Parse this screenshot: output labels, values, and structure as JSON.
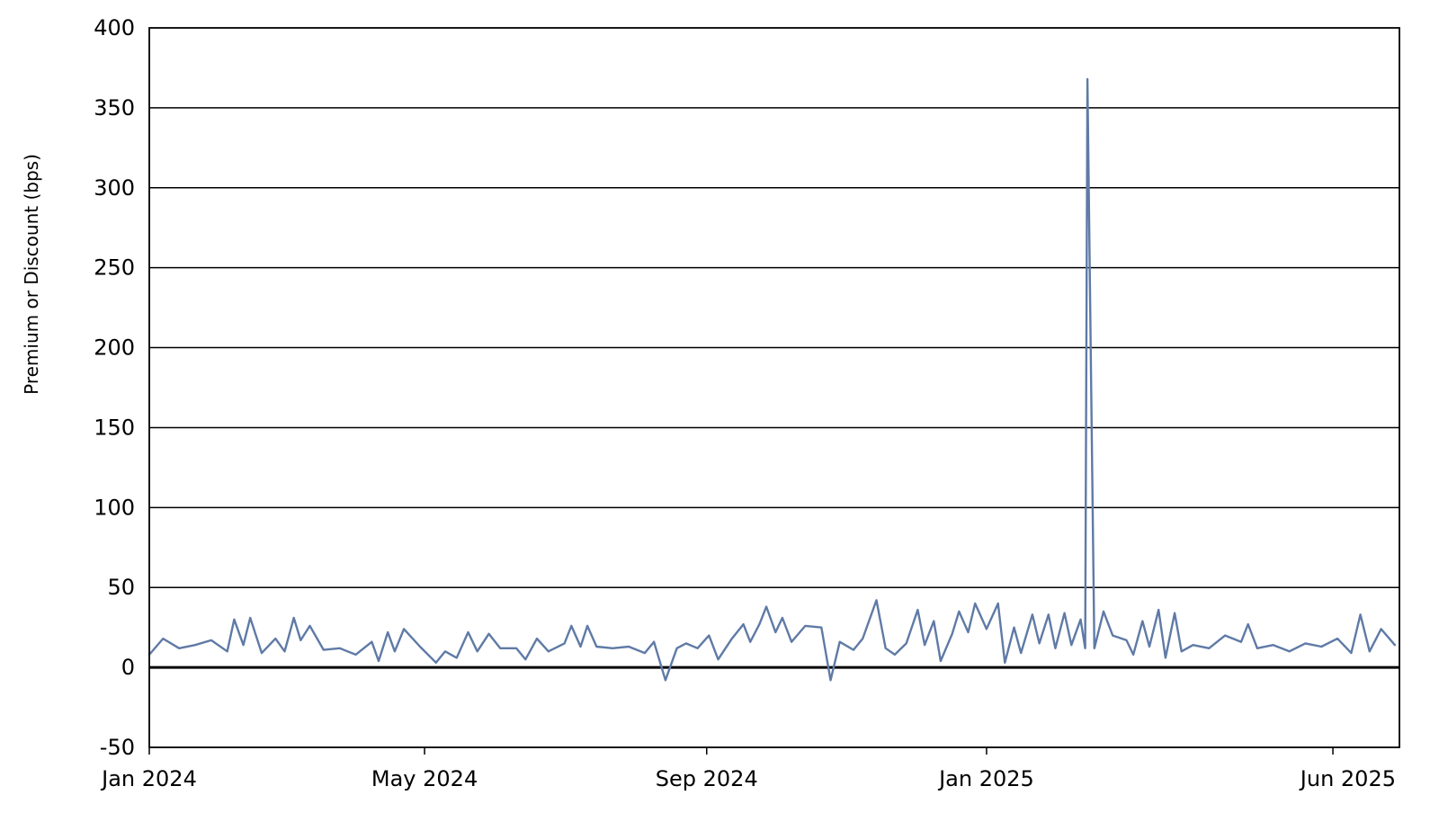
{
  "chart_data": {
    "type": "line",
    "title": "",
    "xlabel": "",
    "ylabel": "Premium or Discount (bps)",
    "ylim": [
      -50,
      400
    ],
    "yticks": [
      -50,
      0,
      50,
      100,
      150,
      200,
      250,
      300,
      350,
      400
    ],
    "xlim": [
      "2024-01-02",
      "2025-06-30"
    ],
    "xticks": [
      {
        "date": "2024-01-01",
        "label": "Jan 2024"
      },
      {
        "date": "2024-05-01",
        "label": "May 2024"
      },
      {
        "date": "2024-09-01",
        "label": "Sep 2024"
      },
      {
        "date": "2025-01-01",
        "label": "Jan 2025"
      },
      {
        "date": "2025-06-01",
        "label": "Jun 2025"
      }
    ],
    "grid": "horizontal",
    "legend": "none",
    "colors": {
      "series": "#5f7aa6",
      "grid": "#000000",
      "zero_line": "#000000"
    },
    "series": [
      {
        "points": [
          [
            "2024-01-02",
            8
          ],
          [
            "2024-01-08",
            18
          ],
          [
            "2024-01-15",
            12
          ],
          [
            "2024-01-22",
            14
          ],
          [
            "2024-01-29",
            17
          ],
          [
            "2024-02-05",
            10
          ],
          [
            "2024-02-08",
            30
          ],
          [
            "2024-02-12",
            14
          ],
          [
            "2024-02-15",
            31
          ],
          [
            "2024-02-20",
            9
          ],
          [
            "2024-02-26",
            18
          ],
          [
            "2024-03-01",
            10
          ],
          [
            "2024-03-05",
            31
          ],
          [
            "2024-03-08",
            17
          ],
          [
            "2024-03-12",
            26
          ],
          [
            "2024-03-18",
            11
          ],
          [
            "2024-03-25",
            12
          ],
          [
            "2024-04-01",
            8
          ],
          [
            "2024-04-08",
            16
          ],
          [
            "2024-04-11",
            4
          ],
          [
            "2024-04-15",
            22
          ],
          [
            "2024-04-18",
            10
          ],
          [
            "2024-04-22",
            24
          ],
          [
            "2024-04-29",
            13
          ],
          [
            "2024-05-06",
            3
          ],
          [
            "2024-05-10",
            10
          ],
          [
            "2024-05-15",
            6
          ],
          [
            "2024-05-20",
            22
          ],
          [
            "2024-05-24",
            10
          ],
          [
            "2024-05-29",
            21
          ],
          [
            "2024-06-03",
            12
          ],
          [
            "2024-06-10",
            12
          ],
          [
            "2024-06-14",
            5
          ],
          [
            "2024-06-19",
            18
          ],
          [
            "2024-06-24",
            10
          ],
          [
            "2024-07-01",
            15
          ],
          [
            "2024-07-04",
            26
          ],
          [
            "2024-07-08",
            13
          ],
          [
            "2024-07-11",
            26
          ],
          [
            "2024-07-15",
            13
          ],
          [
            "2024-07-22",
            12
          ],
          [
            "2024-07-29",
            13
          ],
          [
            "2024-08-05",
            9
          ],
          [
            "2024-08-09",
            16
          ],
          [
            "2024-08-14",
            -8
          ],
          [
            "2024-08-19",
            12
          ],
          [
            "2024-08-23",
            15
          ],
          [
            "2024-08-28",
            12
          ],
          [
            "2024-09-02",
            20
          ],
          [
            "2024-09-06",
            5
          ],
          [
            "2024-09-12",
            18
          ],
          [
            "2024-09-17",
            27
          ],
          [
            "2024-09-20",
            16
          ],
          [
            "2024-09-24",
            27
          ],
          [
            "2024-09-27",
            38
          ],
          [
            "2024-10-01",
            22
          ],
          [
            "2024-10-04",
            31
          ],
          [
            "2024-10-08",
            16
          ],
          [
            "2024-10-14",
            26
          ],
          [
            "2024-10-21",
            25
          ],
          [
            "2024-10-25",
            -8
          ],
          [
            "2024-10-29",
            16
          ],
          [
            "2024-11-04",
            11
          ],
          [
            "2024-11-08",
            18
          ],
          [
            "2024-11-14",
            42
          ],
          [
            "2024-11-18",
            12
          ],
          [
            "2024-11-22",
            8
          ],
          [
            "2024-11-27",
            15
          ],
          [
            "2024-12-02",
            36
          ],
          [
            "2024-12-05",
            14
          ],
          [
            "2024-12-09",
            29
          ],
          [
            "2024-12-12",
            4
          ],
          [
            "2024-12-17",
            21
          ],
          [
            "2024-12-20",
            35
          ],
          [
            "2024-12-24",
            22
          ],
          [
            "2024-12-27",
            40
          ],
          [
            "2025-01-01",
            24
          ],
          [
            "2025-01-06",
            40
          ],
          [
            "2025-01-09",
            3
          ],
          [
            "2025-01-13",
            25
          ],
          [
            "2025-01-16",
            9
          ],
          [
            "2025-01-21",
            33
          ],
          [
            "2025-01-24",
            15
          ],
          [
            "2025-01-28",
            33
          ],
          [
            "2025-01-31",
            12
          ],
          [
            "2025-02-04",
            34
          ],
          [
            "2025-02-07",
            14
          ],
          [
            "2025-02-11",
            30
          ],
          [
            "2025-02-13",
            12
          ],
          [
            "2025-02-14",
            368
          ],
          [
            "2025-02-17",
            12
          ],
          [
            "2025-02-21",
            35
          ],
          [
            "2025-02-25",
            20
          ],
          [
            "2025-03-03",
            17
          ],
          [
            "2025-03-06",
            8
          ],
          [
            "2025-03-10",
            29
          ],
          [
            "2025-03-13",
            13
          ],
          [
            "2025-03-17",
            36
          ],
          [
            "2025-03-20",
            6
          ],
          [
            "2025-03-24",
            34
          ],
          [
            "2025-03-27",
            10
          ],
          [
            "2025-04-01",
            14
          ],
          [
            "2025-04-08",
            12
          ],
          [
            "2025-04-15",
            20
          ],
          [
            "2025-04-22",
            16
          ],
          [
            "2025-04-25",
            27
          ],
          [
            "2025-04-29",
            12
          ],
          [
            "2025-05-06",
            14
          ],
          [
            "2025-05-13",
            10
          ],
          [
            "2025-05-20",
            15
          ],
          [
            "2025-05-27",
            13
          ],
          [
            "2025-06-03",
            18
          ],
          [
            "2025-06-09",
            9
          ],
          [
            "2025-06-13",
            33
          ],
          [
            "2025-06-17",
            10
          ],
          [
            "2025-06-22",
            24
          ],
          [
            "2025-06-28",
            14
          ]
        ]
      }
    ]
  }
}
